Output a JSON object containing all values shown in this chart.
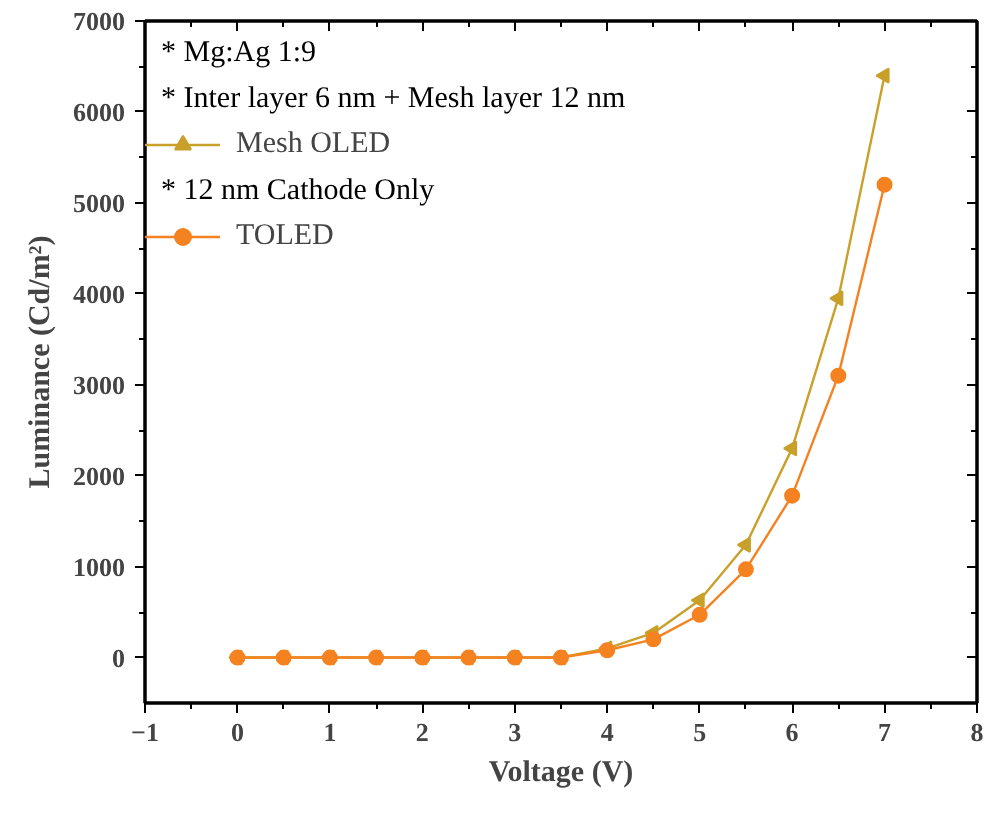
{
  "chart_data": {
    "type": "line",
    "xlabel": "Voltage (V)",
    "ylabel": "Luminance (Cd/m²)",
    "x": [
      0,
      0.5,
      1,
      1.5,
      2,
      2.5,
      3,
      3.5,
      4,
      4.5,
      5,
      5.5,
      6,
      6.5,
      7
    ],
    "series": [
      {
        "name": "Mesh OLED",
        "color": "#c8a02a",
        "marker": "triangle",
        "values": [
          0,
          0,
          0,
          0,
          0,
          0,
          0,
          0,
          100,
          270,
          630,
          1240,
          2300,
          3950,
          6400
        ]
      },
      {
        "name": "TOLED",
        "color": "#f58220",
        "marker": "circle",
        "values": [
          0,
          0,
          0,
          0,
          0,
          0,
          0,
          0,
          80,
          200,
          470,
          970,
          1780,
          3100,
          5200
        ]
      }
    ],
    "annotations": [
      "* Mg:Ag 1:9",
      "* Inter layer 6 nm + Mesh layer 12 nm",
      "* 12 nm Cathode Only"
    ],
    "xlim": [
      -1,
      8
    ],
    "xticks": [
      -1,
      0,
      1,
      2,
      3,
      4,
      5,
      6,
      7,
      8
    ],
    "ylim": [
      -500,
      7000
    ],
    "yticks": [
      0,
      1000,
      2000,
      3000,
      4000,
      5000,
      6000,
      7000
    ],
    "grid": false,
    "legend": "top left"
  }
}
